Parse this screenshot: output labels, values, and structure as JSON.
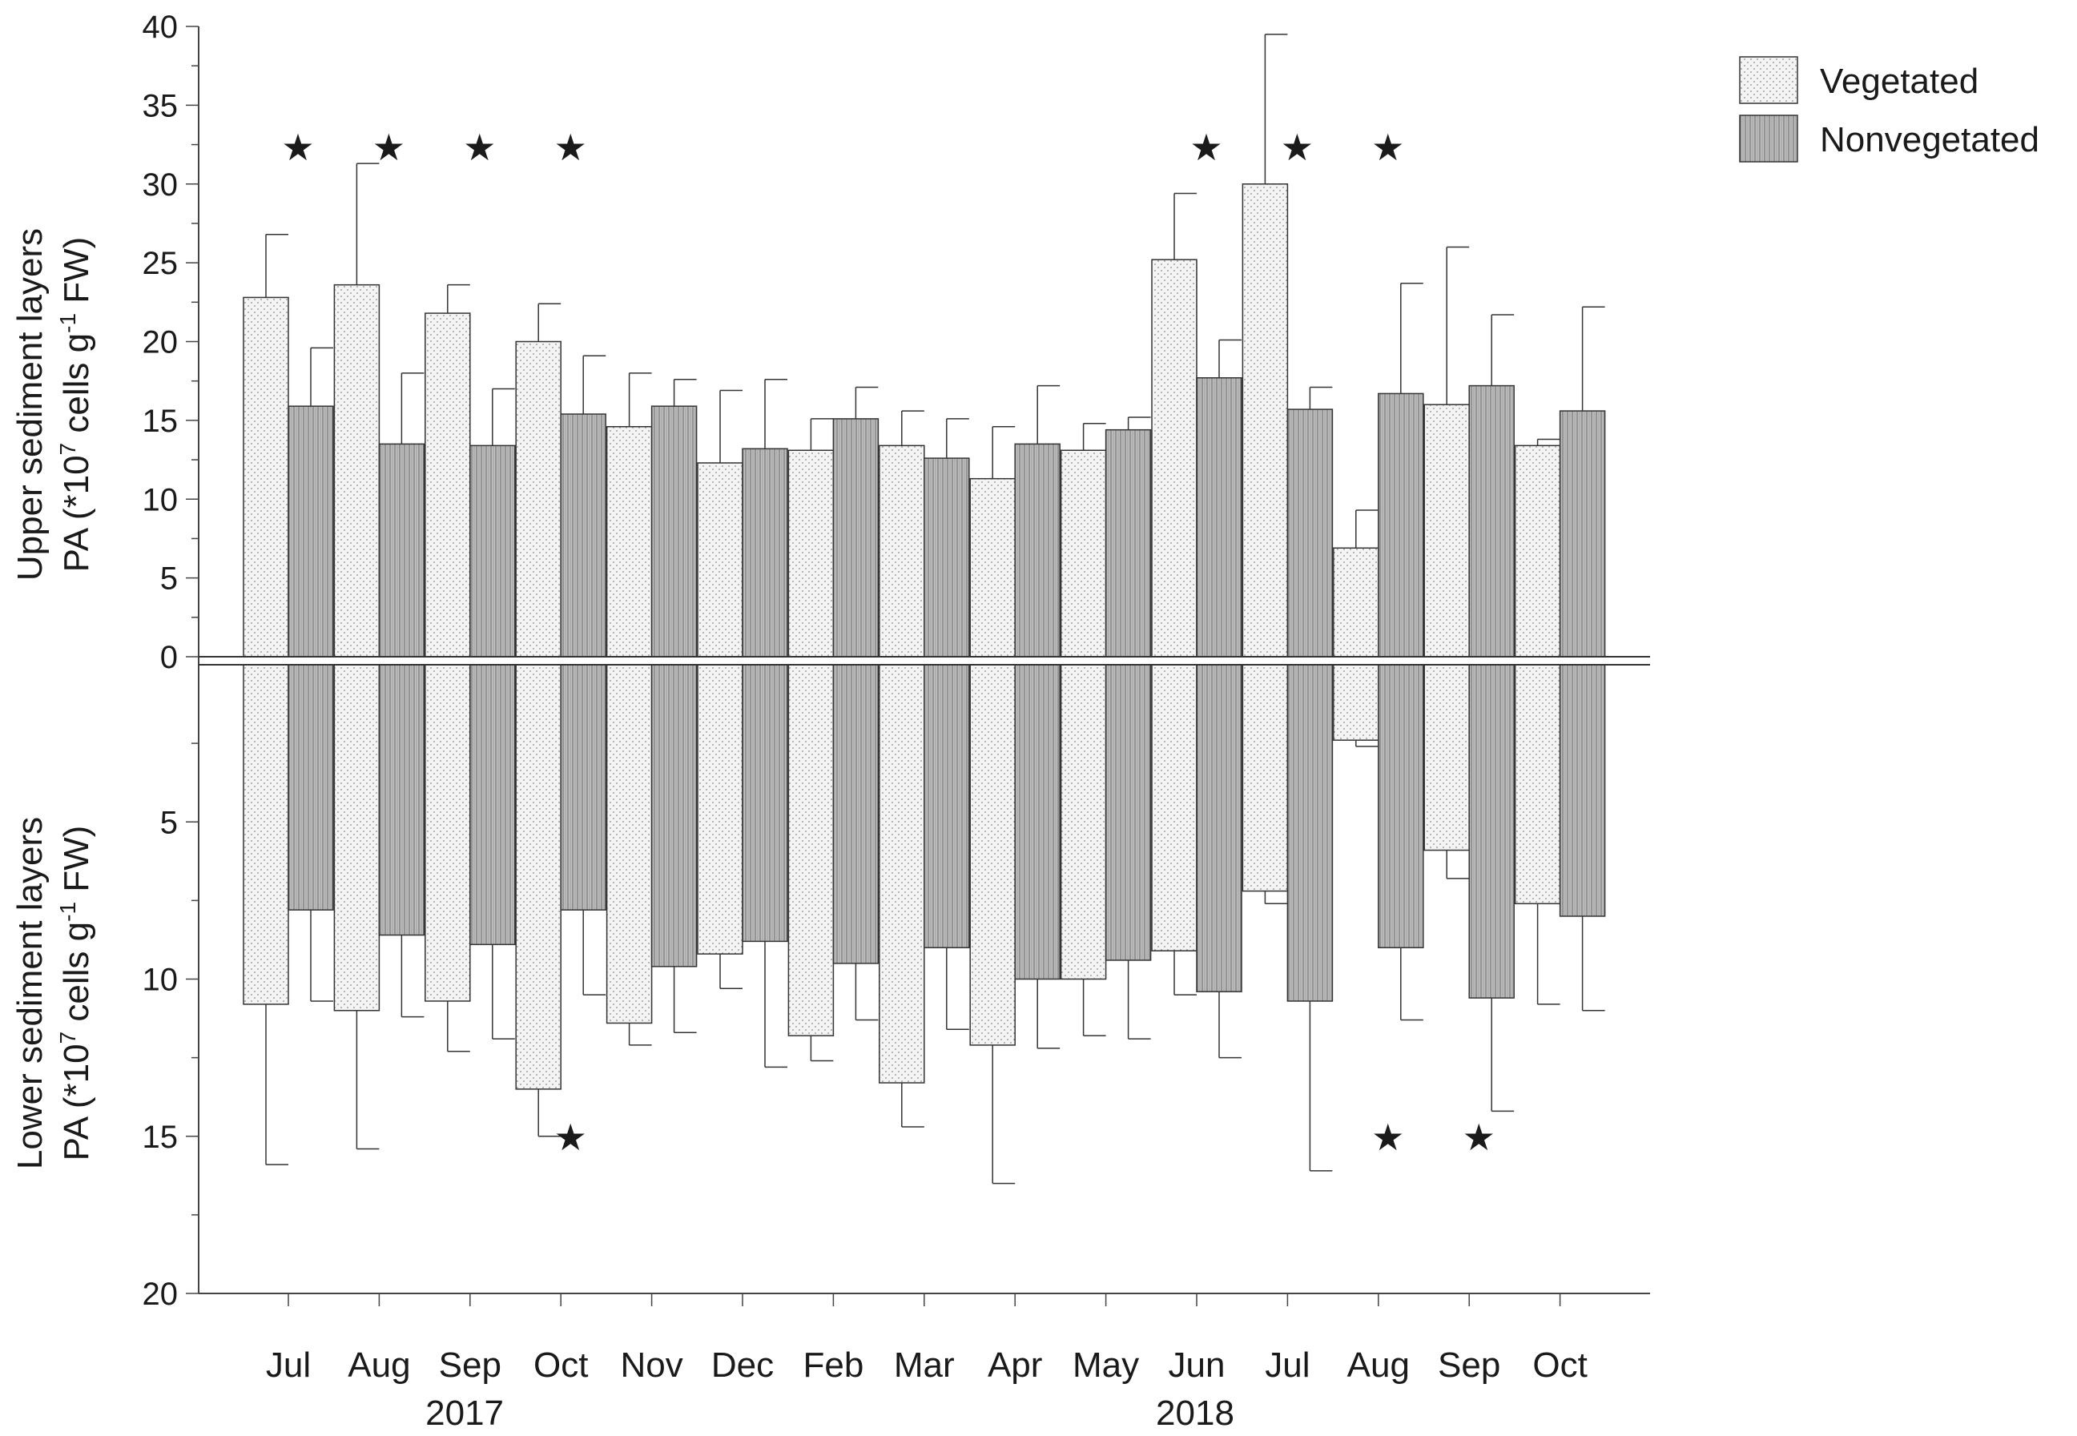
{
  "chart_data": {
    "type": "bar",
    "categories": [
      "Jul",
      "Aug",
      "Sep",
      "Oct",
      "Nov",
      "Dec",
      "Feb",
      "Mar",
      "Apr",
      "May",
      "Jun",
      "Jul",
      "Aug",
      "Sep",
      "Oct"
    ],
    "year_labels": [
      "2017",
      "2018"
    ],
    "upper": {
      "ylabel_line1": "Upper sediment layers",
      "ylabel_line2_prefix": "PA (*10",
      "ylabel_line2_sup1": "7",
      "ylabel_line2_mid": " cells g",
      "ylabel_line2_sup2": "-1",
      "ylabel_line2_suffix": " FW)",
      "ylim": [
        0,
        40
      ],
      "ticks": [
        "0",
        "5",
        "10",
        "15",
        "20",
        "25",
        "30",
        "35",
        "40"
      ],
      "series": [
        {
          "name": "Vegetated",
          "values": [
            22.8,
            23.6,
            21.8,
            20.0,
            14.6,
            12.3,
            13.1,
            13.4,
            11.3,
            13.1,
            25.2,
            30.0,
            6.9,
            16.0,
            13.4
          ],
          "errors": [
            4.0,
            7.7,
            1.8,
            2.4,
            3.4,
            4.6,
            2.0,
            2.2,
            3.3,
            1.7,
            4.2,
            9.5,
            2.4,
            10.0,
            0.4
          ]
        },
        {
          "name": "Nonvegetated",
          "values": [
            15.9,
            13.5,
            13.4,
            15.4,
            15.9,
            13.2,
            15.1,
            12.6,
            13.5,
            14.4,
            17.7,
            15.7,
            16.7,
            17.2,
            15.6
          ],
          "errors": [
            3.7,
            4.5,
            3.6,
            3.7,
            1.7,
            4.4,
            2.0,
            2.5,
            3.7,
            0.8,
            2.4,
            1.4,
            7.0,
            4.5,
            6.6
          ]
        }
      ],
      "significance_labels": [
        "★",
        "★",
        "★",
        "★",
        "★",
        "★",
        "★"
      ],
      "significance_categories": [
        0,
        1,
        2,
        3,
        10,
        11,
        12
      ]
    },
    "lower": {
      "ylabel_line1": "Lower sediment layers",
      "ylabel_line2_prefix": "PA (*10",
      "ylabel_line2_sup1": "7",
      "ylabel_line2_mid": " cells g",
      "ylabel_line2_sup2": "-1",
      "ylabel_line2_suffix": " FW)",
      "ylim": [
        0,
        20
      ],
      "ticks": [
        "5",
        "10",
        "15",
        "20"
      ],
      "series": [
        {
          "name": "Vegetated",
          "values": [
            10.8,
            11.0,
            10.7,
            13.5,
            11.4,
            9.2,
            11.8,
            13.3,
            12.1,
            10.0,
            9.1,
            7.2,
            2.4,
            5.9,
            7.6
          ],
          "errors": [
            5.1,
            4.4,
            1.6,
            1.5,
            0.7,
            1.1,
            0.8,
            1.4,
            4.4,
            1.8,
            1.4,
            0.4,
            0.2,
            0.9,
            3.2
          ]
        },
        {
          "name": "Nonvegetated",
          "values": [
            7.8,
            8.6,
            8.9,
            7.8,
            9.6,
            8.8,
            9.5,
            9.0,
            10.0,
            9.4,
            10.4,
            10.7,
            9.0,
            10.6,
            8.0
          ],
          "errors": [
            2.9,
            2.6,
            3.0,
            2.7,
            2.1,
            4.0,
            1.8,
            2.6,
            2.2,
            2.5,
            2.1,
            5.4,
            2.3,
            3.6,
            3.0
          ]
        }
      ],
      "significance_labels": [
        "★",
        "★",
        "★"
      ],
      "significance_categories": [
        3,
        12,
        13
      ]
    },
    "legend": {
      "placement": "top-right",
      "entries": [
        "Vegetated",
        "Nonvegetated"
      ]
    },
    "colors": {
      "vegetated_fill": "#f4f4f4",
      "nonvegetated_fill": "#bdbdbd",
      "stroke": "#333333"
    }
  }
}
